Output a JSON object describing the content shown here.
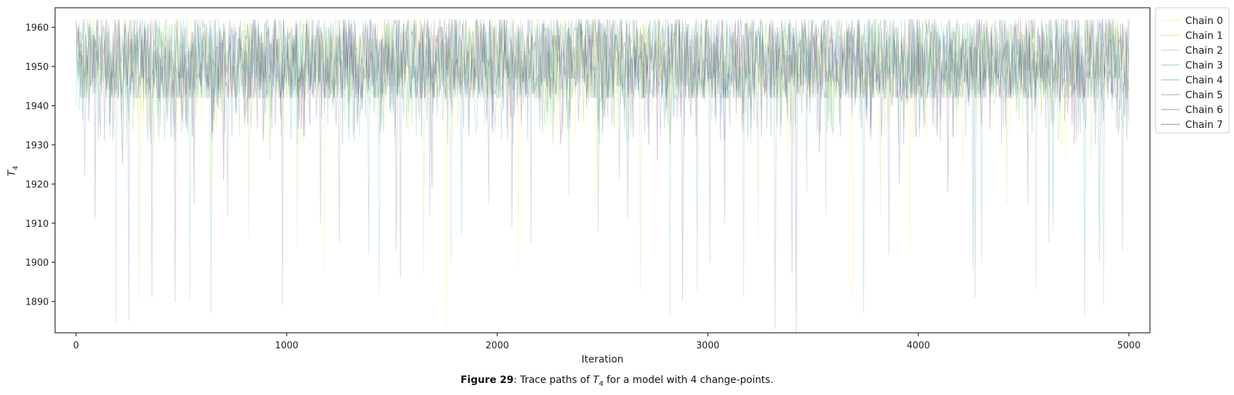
{
  "chart_data": {
    "type": "line",
    "title": "",
    "xlabel": "Iteration",
    "ylabel": "T",
    "ylabel_subscript": "4",
    "xlim": [
      -100,
      5100
    ],
    "ylim": [
      1882,
      1965
    ],
    "xticks": [
      0,
      1000,
      2000,
      3000,
      4000,
      5000
    ],
    "yticks": [
      1890,
      1900,
      1910,
      1920,
      1930,
      1940,
      1950,
      1960
    ],
    "grid": false,
    "legend_position": "outside-top-right",
    "iterations": 5000,
    "series": [
      {
        "name": "Chain 0",
        "color": "#fde725",
        "dips": [
          [
            320,
            1930
          ],
          [
            650,
            1913
          ],
          [
            1180,
            1898
          ],
          [
            1580,
            1932
          ],
          [
            1760,
            1883
          ],
          [
            2100,
            1898
          ],
          [
            2470,
            1914
          ],
          [
            3380,
            1925
          ],
          [
            3690,
            1890
          ],
          [
            3960,
            1902
          ],
          [
            4210,
            1924
          ],
          [
            4700,
            1926
          ]
        ]
      },
      {
        "name": "Chain 1",
        "color": "#a0da39",
        "dips": [
          [
            110,
            1935
          ],
          [
            300,
            1891
          ],
          [
            820,
            1906
          ],
          [
            1050,
            1904
          ],
          [
            1650,
            1897
          ],
          [
            2240,
            1935
          ],
          [
            2680,
            1893
          ],
          [
            3240,
            1906
          ],
          [
            3820,
            1912
          ],
          [
            4420,
            1915
          ],
          [
            4820,
            1926
          ]
        ]
      },
      {
        "name": "Chain 2",
        "color": "#4ac16d",
        "dips": [
          [
            190,
            1884
          ],
          [
            540,
            1890
          ],
          [
            920,
            1926
          ],
          [
            1440,
            1892
          ],
          [
            1780,
            1900
          ],
          [
            2340,
            1917
          ],
          [
            2820,
            1886
          ],
          [
            3170,
            1891
          ],
          [
            3560,
            1912
          ],
          [
            4080,
            1935
          ],
          [
            4560,
            1893
          ],
          [
            4880,
            1889
          ]
        ]
      },
      {
        "name": "Chain 3",
        "color": "#1fa187",
        "dips": [
          [
            640,
            1887
          ],
          [
            1020,
            1931
          ],
          [
            1390,
            1902
          ],
          [
            1830,
            1907
          ],
          [
            2480,
            1908
          ],
          [
            2950,
            1893
          ],
          [
            3470,
            1918
          ],
          [
            3740,
            1887
          ],
          [
            4300,
            1900
          ],
          [
            4640,
            1908
          ],
          [
            4790,
            1886
          ]
        ]
      },
      {
        "name": "Chain 4",
        "color": "#277f8e",
        "dips": [
          [
            40,
            1922
          ],
          [
            250,
            1885
          ],
          [
            720,
            1912
          ],
          [
            1250,
            1905
          ],
          [
            1680,
            1912
          ],
          [
            2160,
            1905
          ],
          [
            2580,
            1921
          ],
          [
            3010,
            1900
          ],
          [
            3320,
            1883
          ],
          [
            3860,
            1902
          ],
          [
            4270,
            1891
          ],
          [
            4970,
            1903
          ]
        ]
      },
      {
        "name": "Chain 5",
        "color": "#365c8d",
        "dips": [
          [
            360,
            1891
          ],
          [
            470,
            1890
          ],
          [
            980,
            1889
          ],
          [
            1160,
            1910
          ],
          [
            1540,
            1896
          ],
          [
            1960,
            1915
          ],
          [
            2620,
            1911
          ],
          [
            3080,
            1910
          ],
          [
            3400,
            1897
          ],
          [
            4260,
            1898
          ],
          [
            4620,
            1905
          ],
          [
            4860,
            1900
          ]
        ]
      },
      {
        "name": "Chain 6",
        "color": "#46327e",
        "dips": [
          [
            90,
            1911
          ],
          [
            560,
            1915
          ],
          [
            1520,
            1903
          ],
          [
            2070,
            1909
          ],
          [
            2880,
            1890
          ],
          [
            3420,
            1882
          ],
          [
            3910,
            1920
          ],
          [
            4520,
            1915
          ],
          [
            4760,
            1933
          ]
        ]
      },
      {
        "name": "Chain 7",
        "color": "#440154",
        "dips": [
          [
            220,
            1925
          ],
          [
            700,
            1921
          ],
          [
            1690,
            1919
          ],
          [
            2300,
            1930
          ],
          [
            2760,
            1926
          ],
          [
            3530,
            1928
          ],
          [
            4140,
            1918
          ],
          [
            4950,
            1933
          ]
        ]
      }
    ]
  },
  "caption": {
    "prefix": "Figure 29",
    "text_before": ": Trace paths of ",
    "symbol": "T",
    "subscript": "4",
    "text_after": " for a model with 4 change-points."
  }
}
